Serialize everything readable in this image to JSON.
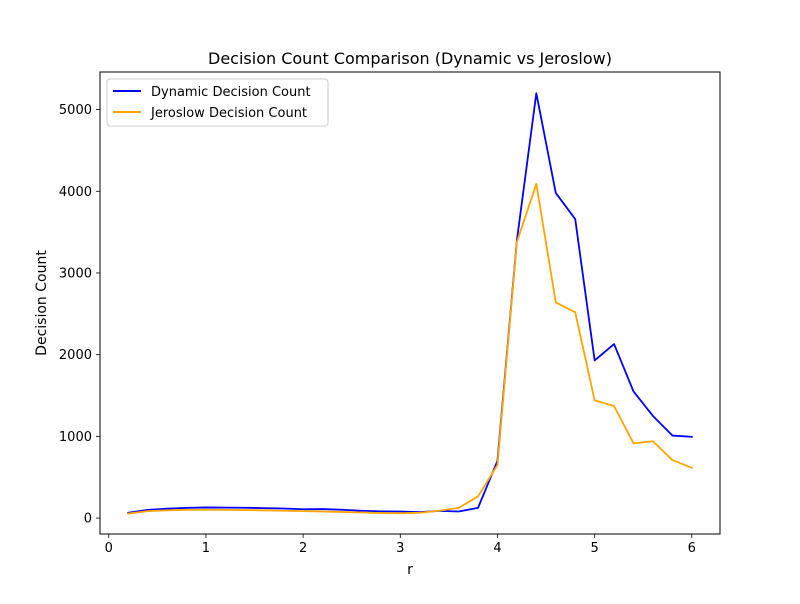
{
  "chart_data": {
    "type": "line",
    "title": "Decision Count Comparison (Dynamic vs Jeroslow)",
    "xlabel": "r",
    "ylabel": "Decision Count",
    "xlim": [
      -0.09,
      6.29
    ],
    "ylim": [
      -195,
      5460
    ],
    "xticks": [
      0,
      1,
      2,
      3,
      4,
      5,
      6
    ],
    "xtick_labels": [
      "0",
      "1",
      "2",
      "3",
      "4",
      "5",
      "6"
    ],
    "yticks": [
      0,
      1000,
      2000,
      3000,
      4000,
      5000
    ],
    "ytick_labels": [
      "0",
      "1000",
      "2000",
      "3000",
      "4000",
      "5000"
    ],
    "grid": false,
    "legend_position": "upper-left",
    "x": [
      0.2,
      0.4,
      0.6,
      0.8,
      1.0,
      1.2,
      1.4,
      1.6,
      1.8,
      2.0,
      2.2,
      2.4,
      2.6,
      2.8,
      3.0,
      3.2,
      3.4,
      3.6,
      3.8,
      4.0,
      4.2,
      4.4,
      4.6,
      4.8,
      5.0,
      5.2,
      5.4,
      5.6,
      5.8,
      6.0
    ],
    "series": [
      {
        "name": "Dynamic Decision Count",
        "color": "#0000ff",
        "values": [
          65,
          100,
          115,
          125,
          130,
          128,
          126,
          122,
          117,
          108,
          110,
          102,
          90,
          82,
          80,
          72,
          88,
          80,
          125,
          700,
          3400,
          5200,
          3980,
          3660,
          1930,
          2130,
          1550,
          1250,
          1010,
          995
        ]
      },
      {
        "name": "Jeroslow Decision Count",
        "color": "#ffa500",
        "values": [
          55,
          85,
          95,
          100,
          102,
          100,
          98,
          95,
          90,
          85,
          80,
          75,
          68,
          62,
          60,
          65,
          90,
          125,
          265,
          650,
          3380,
          4090,
          2640,
          2520,
          1440,
          1370,
          915,
          940,
          710,
          615
        ]
      }
    ]
  }
}
